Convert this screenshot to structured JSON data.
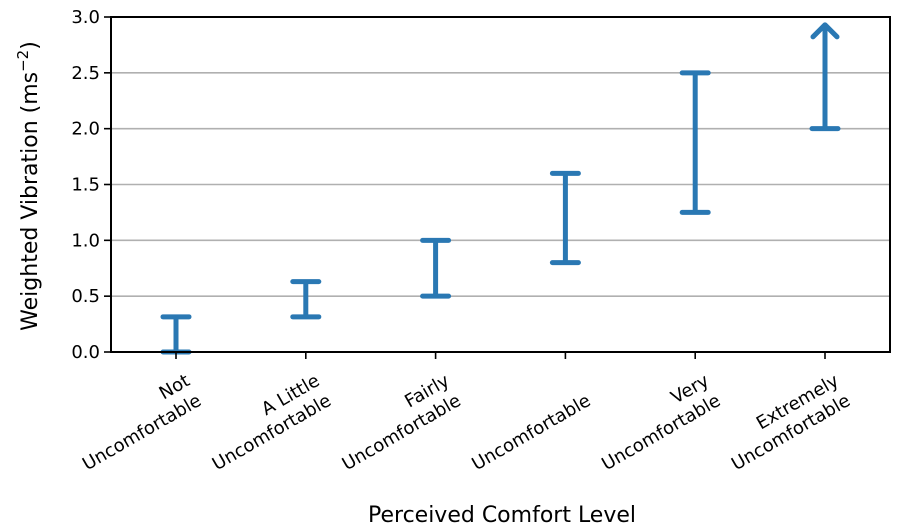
{
  "chart_data": {
    "type": "range",
    "xlabel": "Perceived Comfort Level",
    "ylabel": "Weighted Vibration (ms",
    "ylabel_sup": "−2",
    "ylabel_close": ")",
    "ylim": [
      0.0,
      3.0
    ],
    "yticks": [
      "0.0",
      "0.5",
      "1.0",
      "1.5",
      "2.0",
      "2.5",
      "3.0"
    ],
    "grid": "horizontal",
    "color": "#2a78b3",
    "categories": [
      {
        "lines": [
          "Not",
          "Uncomfortable"
        ],
        "low": 0.0,
        "high": 0.315,
        "open_ended": false
      },
      {
        "lines": [
          "A Little",
          "Uncomfortable"
        ],
        "low": 0.315,
        "high": 0.63,
        "open_ended": false
      },
      {
        "lines": [
          "Fairly",
          "Uncomfortable"
        ],
        "low": 0.5,
        "high": 1.0,
        "open_ended": false
      },
      {
        "lines": [
          "Uncomfortable"
        ],
        "low": 0.8,
        "high": 1.6,
        "open_ended": false
      },
      {
        "lines": [
          "Very",
          "Uncomfortable"
        ],
        "low": 1.25,
        "high": 2.5,
        "open_ended": false
      },
      {
        "lines": [
          "Extremely",
          "Uncomfortable"
        ],
        "low": 2.0,
        "high": 2.93,
        "open_ended": true
      }
    ]
  }
}
